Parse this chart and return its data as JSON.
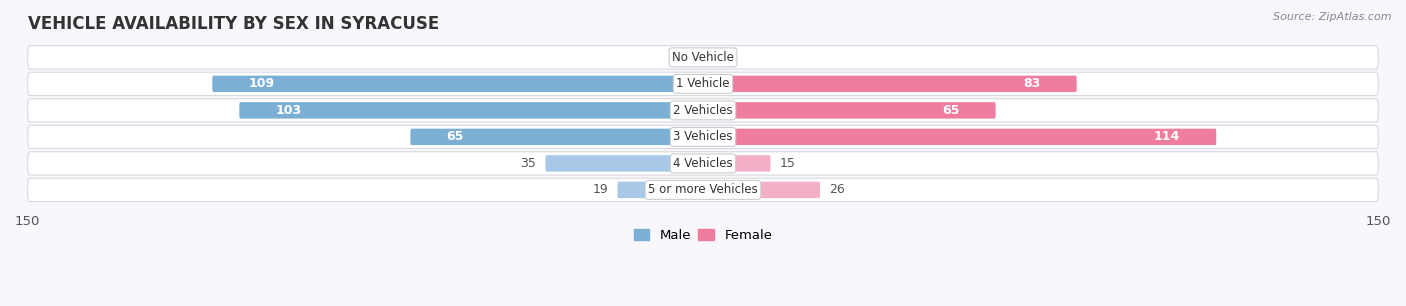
{
  "title": "VEHICLE AVAILABILITY BY SEX IN SYRACUSE",
  "source": "Source: ZipAtlas.com",
  "categories": [
    "No Vehicle",
    "1 Vehicle",
    "2 Vehicles",
    "3 Vehicles",
    "4 Vehicles",
    "5 or more Vehicles"
  ],
  "male_values": [
    0,
    109,
    103,
    65,
    35,
    19
  ],
  "female_values": [
    0,
    83,
    65,
    114,
    15,
    26
  ],
  "male_color": "#7bafd4",
  "female_color": "#f07ca0",
  "male_color_light": "#a8c8e8",
  "female_color_light": "#f4afc8",
  "male_label": "Male",
  "female_label": "Female",
  "axis_limit": 150,
  "title_fontsize": 12,
  "label_fontsize": 9,
  "bar_height": 0.62,
  "row_bg": "#f0f0f5",
  "fig_bg": "#f8f8fc"
}
